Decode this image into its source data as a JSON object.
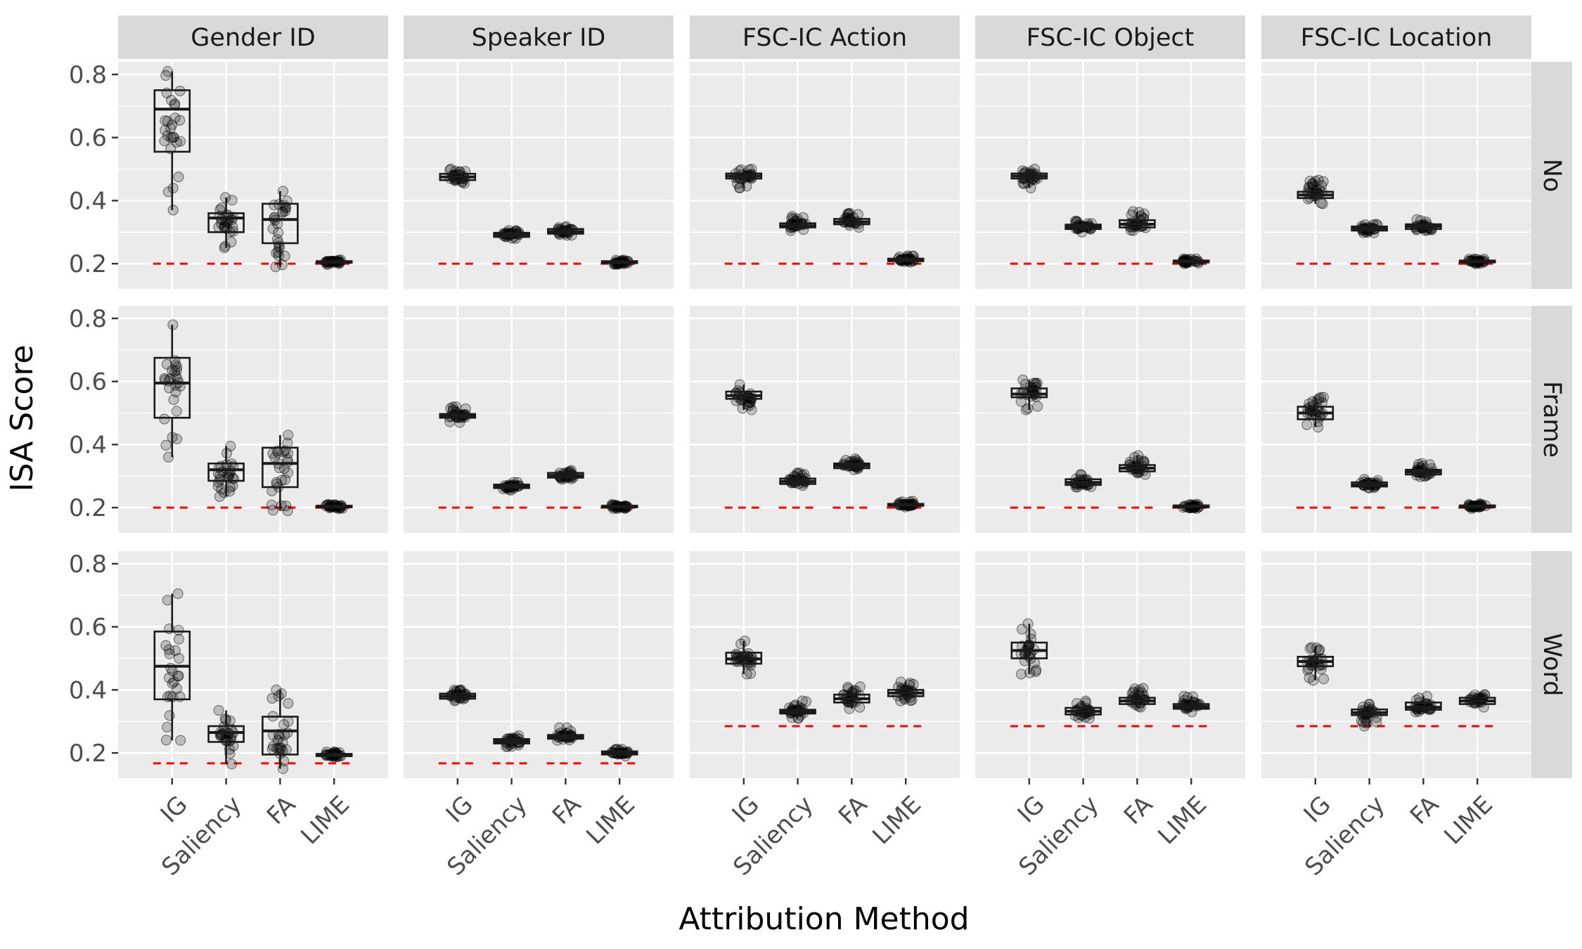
{
  "chart_data": {
    "type": "boxplot",
    "xlabel": "Attribution Method",
    "ylabel": "ISA Score",
    "ylim": [
      0.12,
      0.84
    ],
    "yticks": [
      0.2,
      0.4,
      0.6,
      0.8
    ],
    "ytick_labels": [
      "0.2",
      "0.4",
      "0.6",
      "0.8"
    ],
    "categories": [
      "IG",
      "Saliency",
      "FA",
      "LIME"
    ],
    "col_facets": [
      "Gender ID",
      "Speaker ID",
      "FSC-IC Action",
      "FSC-IC Object",
      "FSC-IC Location"
    ],
    "row_facets": [
      "No",
      "Frame",
      "Word"
    ],
    "colors": {
      "panel_bg": "#ebebeb",
      "grid": "#ffffff",
      "strip_bg": "#d9d9d9",
      "box": "#1a1a1a",
      "baseline": "#ff0000",
      "point": "#000000"
    },
    "baselines": [
      [
        0.2,
        0.2,
        0.2,
        0.2,
        0.2
      ],
      [
        0.2,
        0.2,
        0.2,
        0.2,
        0.2
      ],
      [
        0.167,
        0.167,
        0.285,
        0.285,
        0.285
      ]
    ],
    "panels": [
      [
        [
          [
            0.37,
            0.555,
            0.69,
            0.75,
            0.81
          ],
          [
            0.25,
            0.3,
            0.345,
            0.36,
            0.41
          ],
          [
            0.19,
            0.265,
            0.34,
            0.39,
            0.43
          ],
          [
            0.198,
            0.203,
            0.205,
            0.208,
            0.212
          ]
        ],
        [
          [
            0.455,
            0.465,
            0.475,
            0.485,
            0.5
          ],
          [
            0.28,
            0.285,
            0.292,
            0.298,
            0.305
          ],
          [
            0.29,
            0.295,
            0.302,
            0.31,
            0.318
          ],
          [
            0.198,
            0.202,
            0.205,
            0.208,
            0.212
          ]
        ],
        [
          [
            0.44,
            0.47,
            0.478,
            0.486,
            0.5
          ],
          [
            0.305,
            0.315,
            0.32,
            0.328,
            0.35
          ],
          [
            0.315,
            0.325,
            0.333,
            0.342,
            0.36
          ],
          [
            0.205,
            0.208,
            0.212,
            0.216,
            0.225
          ]
        ],
        [
          [
            0.44,
            0.47,
            0.478,
            0.486,
            0.5
          ],
          [
            0.3,
            0.31,
            0.317,
            0.324,
            0.335
          ],
          [
            0.305,
            0.315,
            0.325,
            0.338,
            0.365
          ],
          [
            0.2,
            0.204,
            0.207,
            0.21,
            0.215
          ]
        ],
        [
          [
            0.39,
            0.408,
            0.418,
            0.428,
            0.465
          ],
          [
            0.298,
            0.305,
            0.312,
            0.318,
            0.325
          ],
          [
            0.305,
            0.31,
            0.318,
            0.325,
            0.34
          ],
          [
            0.2,
            0.204,
            0.207,
            0.21,
            0.215
          ]
        ]
      ],
      [
        [
          [
            0.36,
            0.485,
            0.595,
            0.675,
            0.78
          ],
          [
            0.235,
            0.285,
            0.32,
            0.34,
            0.395
          ],
          [
            0.19,
            0.265,
            0.34,
            0.39,
            0.43
          ],
          [
            0.197,
            0.201,
            0.204,
            0.206,
            0.21
          ]
        ],
        [
          [
            0.47,
            0.485,
            0.49,
            0.497,
            0.52
          ],
          [
            0.255,
            0.262,
            0.267,
            0.273,
            0.28
          ],
          [
            0.29,
            0.295,
            0.302,
            0.31,
            0.318
          ],
          [
            0.197,
            0.201,
            0.204,
            0.206,
            0.21
          ]
        ],
        [
          [
            0.51,
            0.545,
            0.555,
            0.568,
            0.59
          ],
          [
            0.27,
            0.275,
            0.283,
            0.292,
            0.31
          ],
          [
            0.32,
            0.325,
            0.333,
            0.34,
            0.355
          ],
          [
            0.202,
            0.206,
            0.209,
            0.212,
            0.22
          ]
        ],
        [
          [
            0.51,
            0.55,
            0.56,
            0.578,
            0.605
          ],
          [
            0.265,
            0.272,
            0.28,
            0.29,
            0.305
          ],
          [
            0.305,
            0.315,
            0.325,
            0.335,
            0.365
          ],
          [
            0.197,
            0.201,
            0.204,
            0.207,
            0.21
          ]
        ],
        [
          [
            0.455,
            0.48,
            0.5,
            0.52,
            0.55
          ],
          [
            0.262,
            0.267,
            0.272,
            0.28,
            0.29
          ],
          [
            0.298,
            0.305,
            0.313,
            0.32,
            0.34
          ],
          [
            0.197,
            0.201,
            0.204,
            0.207,
            0.212
          ]
        ]
      ],
      [
        [
          [
            0.24,
            0.37,
            0.475,
            0.585,
            0.705
          ],
          [
            0.165,
            0.235,
            0.265,
            0.285,
            0.335
          ],
          [
            0.15,
            0.195,
            0.27,
            0.315,
            0.4
          ],
          [
            0.187,
            0.19,
            0.193,
            0.197,
            0.203
          ]
        ],
        [
          [
            0.365,
            0.372,
            0.38,
            0.388,
            0.4
          ],
          [
            0.22,
            0.23,
            0.237,
            0.244,
            0.255
          ],
          [
            0.24,
            0.245,
            0.251,
            0.257,
            0.28
          ],
          [
            0.19,
            0.195,
            0.2,
            0.205,
            0.212
          ]
        ],
        [
          [
            0.45,
            0.483,
            0.498,
            0.518,
            0.555
          ],
          [
            0.31,
            0.325,
            0.33,
            0.337,
            0.365
          ],
          [
            0.34,
            0.36,
            0.372,
            0.385,
            0.41
          ],
          [
            0.365,
            0.38,
            0.39,
            0.4,
            0.425
          ]
        ],
        [
          [
            0.45,
            0.5,
            0.525,
            0.55,
            0.61
          ],
          [
            0.31,
            0.322,
            0.332,
            0.343,
            0.365
          ],
          [
            0.345,
            0.355,
            0.365,
            0.375,
            0.405
          ],
          [
            0.33,
            0.34,
            0.347,
            0.355,
            0.38
          ]
        ],
        [
          [
            0.43,
            0.475,
            0.49,
            0.505,
            0.535
          ],
          [
            0.285,
            0.32,
            0.328,
            0.338,
            0.355
          ],
          [
            0.33,
            0.337,
            0.345,
            0.36,
            0.38
          ],
          [
            0.345,
            0.355,
            0.365,
            0.375,
            0.385
          ]
        ]
      ]
    ]
  }
}
